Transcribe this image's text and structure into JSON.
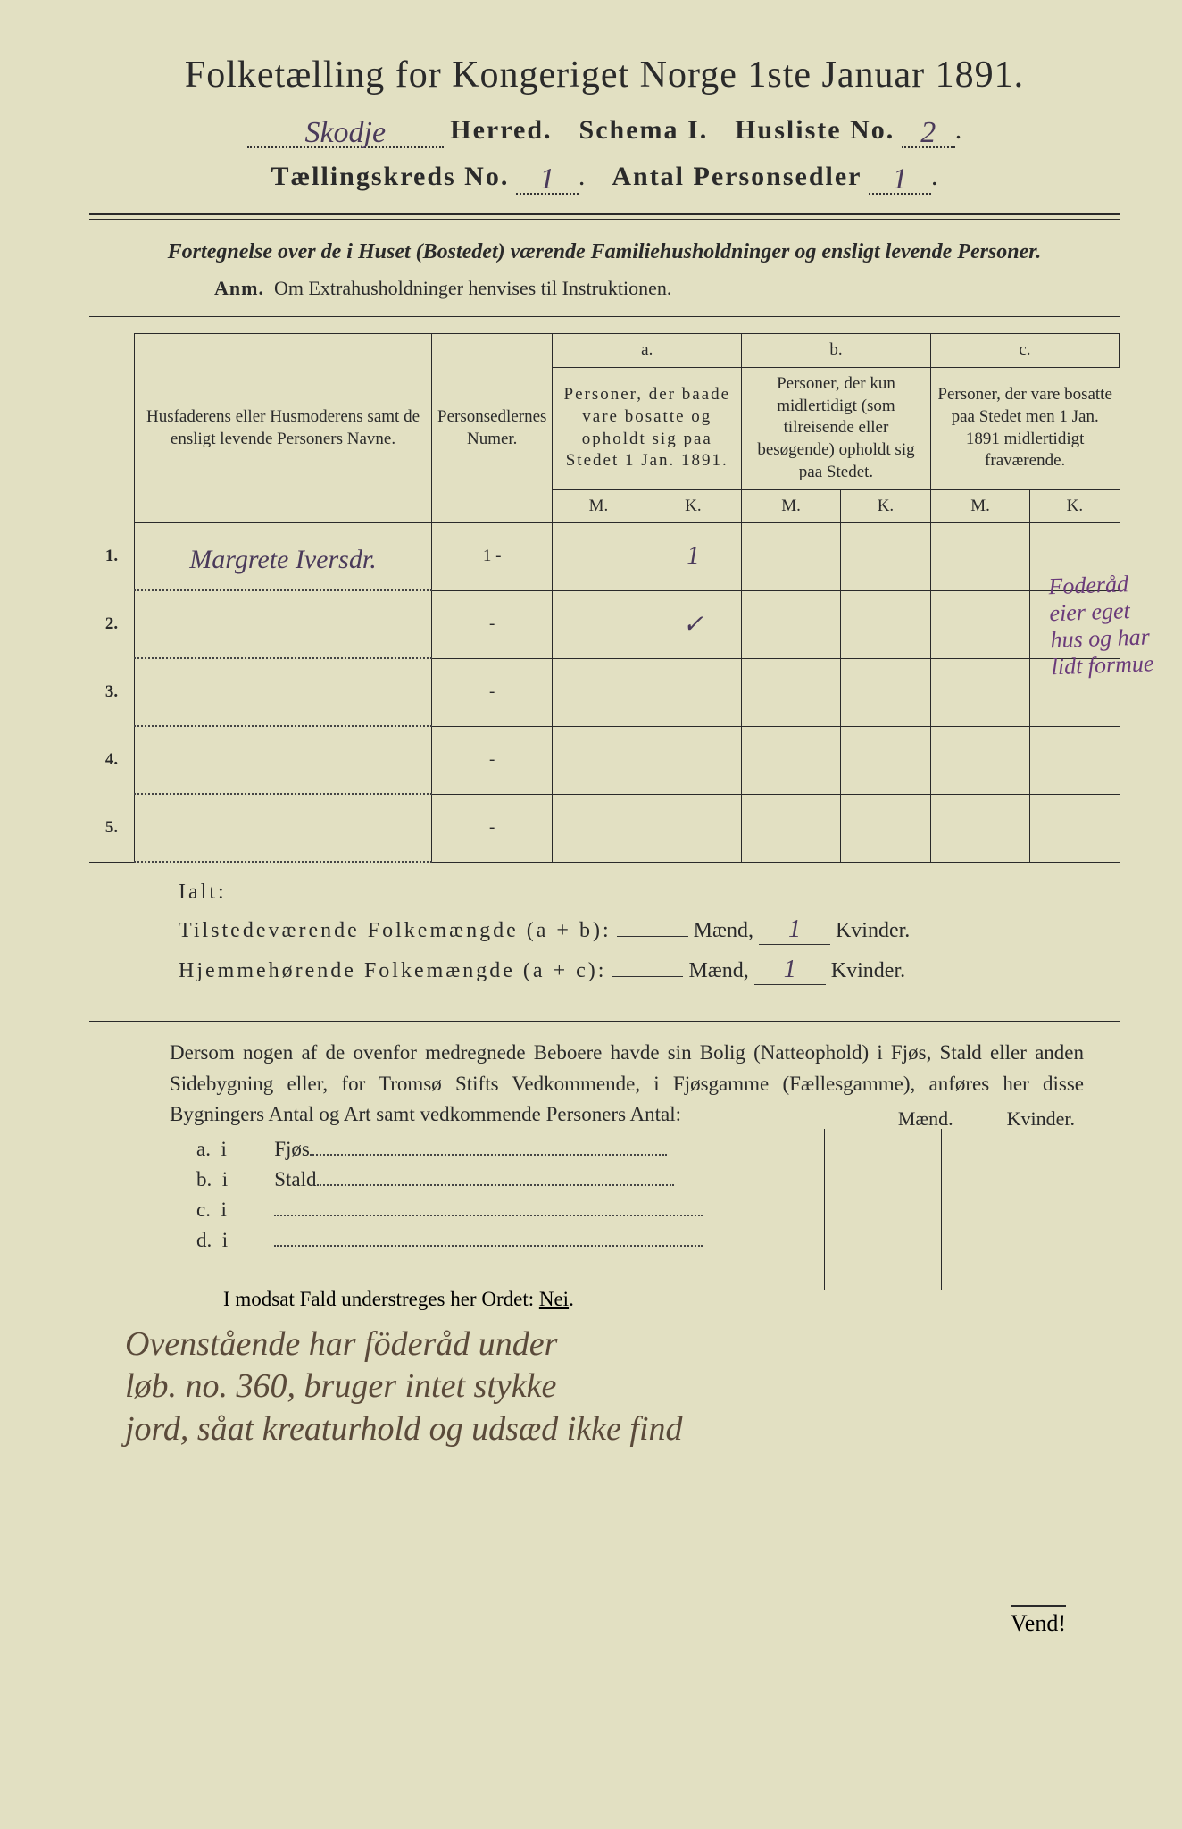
{
  "header": {
    "title": "Folketælling for Kongeriget Norge 1ste Januar 1891.",
    "herred_value": "Skodje",
    "herred_label": "Herred.",
    "schema_label": "Schema I.",
    "husliste_label": "Husliste No.",
    "husliste_value": "2",
    "kreds_label": "Tællingskreds No.",
    "kreds_value": "1",
    "antal_label": "Antal Personsedler",
    "antal_value": "1"
  },
  "description": "Fortegnelse over de i Huset (Bostedet) værende Familiehusholdninger og ensligt levende Personer.",
  "anm_label": "Anm.",
  "anm_text": "Om Extrahusholdninger henvises til Instruktionen.",
  "table": {
    "col_name": "Husfaderens eller Husmoderens samt de ensligt levende Personers Navne.",
    "col_numer": "Personsedlernes Numer.",
    "col_a_letter": "a.",
    "col_a": "Personer, der baade vare bosatte og opholdt sig paa Stedet 1 Jan. 1891.",
    "col_b_letter": "b.",
    "col_b": "Personer, der kun midlertidigt (som tilreisende eller besøgende) opholdt sig paa Stedet.",
    "col_c_letter": "c.",
    "col_c": "Personer, der vare bosatte paa Stedet men 1 Jan. 1891 midlertidigt fraværende.",
    "m": "M.",
    "k": "K.",
    "rows": [
      {
        "n": "1.",
        "name": "Margrete Iversdr.",
        "numer": "1 -",
        "aM": "",
        "aK": "1",
        "bM": "",
        "bK": "",
        "cM": "",
        "cK": ""
      },
      {
        "n": "2.",
        "name": "",
        "numer": "-",
        "aM": "",
        "aK": "✓",
        "bM": "",
        "bK": "",
        "cM": "",
        "cK": ""
      },
      {
        "n": "3.",
        "name": "",
        "numer": "-",
        "aM": "",
        "aK": "",
        "bM": "",
        "bK": "",
        "cM": "",
        "cK": ""
      },
      {
        "n": "4.",
        "name": "",
        "numer": "-",
        "aM": "",
        "aK": "",
        "bM": "",
        "bK": "",
        "cM": "",
        "cK": ""
      },
      {
        "n": "5.",
        "name": "",
        "numer": "-",
        "aM": "",
        "aK": "",
        "bM": "",
        "bK": "",
        "cM": "",
        "cK": ""
      }
    ]
  },
  "side_note": "Foderåd eier eget hus og har lidt formue",
  "ialt": {
    "label": "Ialt:",
    "row1_label": "Tilstedeværende Folkemængde (a + b):",
    "row2_label": "Hjemmehørende Folkemængde (a + c):",
    "maend": "Mænd,",
    "kvinder": "Kvinder.",
    "r1_m": "",
    "r1_k": "1",
    "r2_m": "",
    "r2_k": "1"
  },
  "body_text": "Dersom nogen af de ovenfor medregnede Beboere havde sin Bolig (Natteophold) i Fjøs, Stald eller anden Sidebygning eller, for Tromsø Stifts Vedkommende, i Fjøsgamme (Fællesgamme), anføres her disse Bygningers Antal og Art samt vedkommende Personers Antal:",
  "buildings": {
    "maend": "Mænd.",
    "kvinder": "Kvinder.",
    "rows": [
      {
        "letter": "a.",
        "i": "i",
        "label": "Fjøs"
      },
      {
        "letter": "b.",
        "i": "i",
        "label": "Stald"
      },
      {
        "letter": "c.",
        "i": "i",
        "label": ""
      },
      {
        "letter": "d.",
        "i": "i",
        "label": ""
      }
    ]
  },
  "nei_line_pre": "I modsat Fald understreges her Ordet: ",
  "nei": "Nei",
  "bottom_hand_1": "Ovenstående har föderåd under",
  "bottom_hand_2": "løb. no. 360, bruger intet stykke",
  "bottom_hand_3": "jord, såat kreaturhold og udsæd ikke find",
  "vend": "Vend!"
}
